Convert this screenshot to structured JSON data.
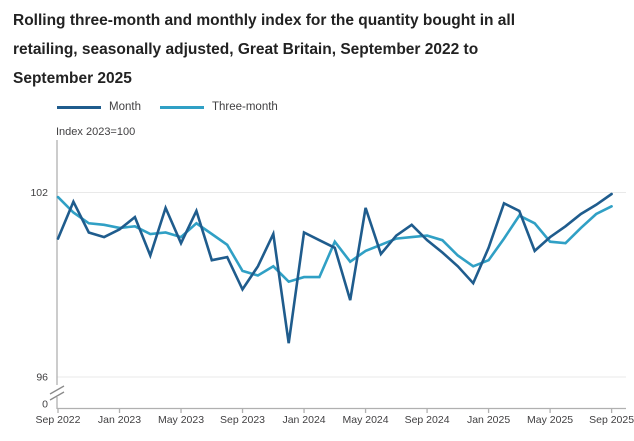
{
  "title": {
    "line1": "Rolling three-month and monthly index for the quantity bought in all",
    "line2": "retailing, seasonally adjusted, Great Britain, September 2022 to",
    "line3": "September 2025",
    "full": "Rolling three-month and monthly index for the quantity bought in all retailing, seasonally adjusted, Great Britain, September 2022 to September 2025"
  },
  "legend": {
    "month_label": "Month",
    "three_month_label": "Three-month"
  },
  "axis_unit_label": "Index 2023=100",
  "colors": {
    "month_line": "#1f5c8d",
    "three_month_line": "#30a0c5",
    "axis": "#b0b0b0",
    "gridline": "#e9e9e9",
    "tick_text": "#414042",
    "title_text": "#222222"
  },
  "chart_data": {
    "type": "line",
    "title": "Rolling three-month and monthly index for the quantity bought in all retailing, seasonally adjusted, Great Britain, September 2022 to September 2025",
    "ylabel": "Index 2023=100",
    "xlabel": "",
    "ylim_shown": [
      96,
      102
    ],
    "y_ticks": [
      102,
      96
    ],
    "y_zero_label": "0",
    "axis_break": true,
    "grid": "horizontal-faint",
    "legend_position": "top-left",
    "categories": [
      "Sep 2022",
      "Oct 2022",
      "Nov 2022",
      "Dec 2022",
      "Jan 2023",
      "Feb 2023",
      "Mar 2023",
      "Apr 2023",
      "May 2023",
      "Jun 2023",
      "Jul 2023",
      "Aug 2023",
      "Sep 2023",
      "Oct 2023",
      "Nov 2023",
      "Dec 2023",
      "Jan 2024",
      "Feb 2024",
      "Mar 2024",
      "Apr 2024",
      "May 2024",
      "Jun 2024",
      "Jul 2024",
      "Aug 2024",
      "Sep 2024",
      "Oct 2024",
      "Nov 2024",
      "Dec 2024",
      "Jan 2025",
      "Feb 2025",
      "Mar 2025",
      "Apr 2025",
      "May 2025",
      "Jun 2025",
      "Jul 2025",
      "Aug 2025",
      "Sep 2025"
    ],
    "x_tick_labels": [
      "Sep 2022",
      "Jan 2023",
      "May 2023",
      "Sep 2023",
      "Jan 2024",
      "May 2024",
      "Sep 2024",
      "Jan 2025",
      "May 2025",
      "Sep 2025"
    ],
    "x_tick_every": 4,
    "series": [
      {
        "name": "Month",
        "color": "#1f5c8d",
        "values": [
          100.5,
          101.7,
          100.7,
          100.55,
          100.8,
          101.2,
          99.95,
          101.5,
          100.35,
          101.4,
          99.8,
          99.9,
          98.85,
          99.6,
          100.65,
          97.1,
          100.7,
          100.45,
          100.2,
          98.5,
          101.5,
          100.0,
          100.6,
          100.95,
          100.45,
          100.05,
          99.6,
          99.05,
          100.2,
          101.65,
          101.4,
          100.1,
          100.55,
          100.9,
          101.3,
          101.6,
          101.95
        ]
      },
      {
        "name": "Three-month",
        "color": "#30a0c5",
        "values": [
          101.85,
          101.35,
          101.0,
          100.95,
          100.85,
          100.9,
          100.65,
          100.7,
          100.55,
          101.0,
          100.65,
          100.3,
          99.45,
          99.3,
          99.6,
          99.1,
          99.25,
          99.25,
          100.4,
          99.75,
          100.1,
          100.3,
          100.5,
          100.55,
          100.6,
          100.45,
          99.95,
          99.6,
          99.8,
          100.5,
          101.25,
          101.0,
          100.4,
          100.35,
          100.85,
          101.3,
          101.55
        ]
      }
    ]
  }
}
